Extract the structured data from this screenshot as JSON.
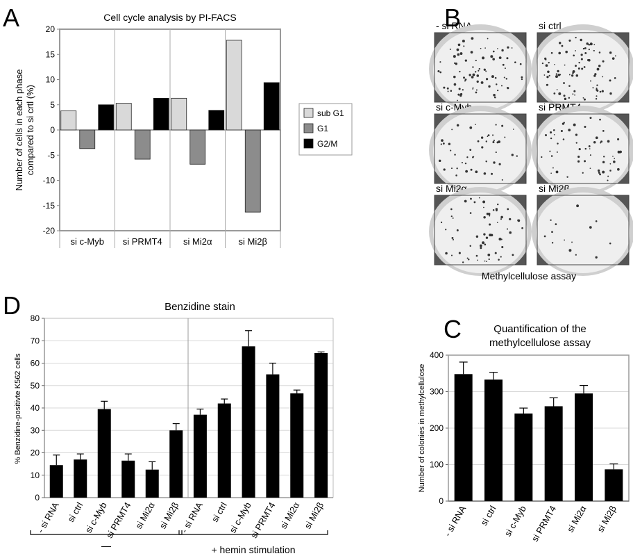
{
  "panels": {
    "A": {
      "letter": "A"
    },
    "B": {
      "letter": "B"
    },
    "C": {
      "letter": "C"
    },
    "D": {
      "letter": "D"
    }
  },
  "chart_data": [
    {
      "id": "A",
      "type": "bar",
      "title": "Cell cycle analysis by PI-FACS",
      "ylabel": "Number of cells in each phase compared to si crtl (%)",
      "ylabel_lines": [
        "Number of cells in each phase",
        "compared to si crtl (%)"
      ],
      "xlabel": "",
      "ylim": [
        -20,
        20
      ],
      "yticks": [
        -20,
        -15,
        -10,
        -5,
        0,
        5,
        10,
        15,
        20
      ],
      "categories": [
        "si c-Myb",
        "si PRMT4",
        "si Mi2α",
        "si Mi2β"
      ],
      "series": [
        {
          "name": "sub G1",
          "color": "#d9d9d9",
          "values": [
            3.8,
            5.3,
            6.3,
            17.8
          ]
        },
        {
          "name": "G1",
          "color": "#8c8c8c",
          "values": [
            -3.7,
            -5.8,
            -6.8,
            -16.3
          ]
        },
        {
          "name": "G2/M",
          "color": "#000000",
          "values": [
            5.0,
            6.3,
            3.9,
            9.4
          ]
        }
      ],
      "grid": false,
      "legend": "right"
    },
    {
      "id": "D",
      "type": "bar",
      "title": "Benzidine stain",
      "ylabel": "% Benzidine-positivte K562 cells",
      "xlabel": "",
      "ylim": [
        0,
        80
      ],
      "yticks": [
        0,
        10,
        20,
        30,
        40,
        50,
        60,
        70,
        80
      ],
      "groups": [
        {
          "label": "—",
          "categories": [
            "- si RNA",
            "si ctrl",
            "si c-Myb",
            "si PRMT4",
            "si Mi2α",
            "si Mi2β"
          ],
          "values": [
            14.5,
            17.0,
            39.5,
            16.5,
            12.5,
            30.0
          ],
          "errors": [
            4.5,
            2.5,
            3.5,
            3.0,
            3.5,
            3.0
          ]
        },
        {
          "label": "+ hemin stimulation",
          "categories": [
            "- si RNA",
            "si ctrl",
            "si c-Myb",
            "si PRMT4",
            "si Mi2α",
            "si Mi2β"
          ],
          "values": [
            37.0,
            42.0,
            67.5,
            55.0,
            46.5,
            64.5
          ],
          "errors": [
            2.5,
            2.0,
            7.0,
            5.0,
            1.5,
            0.5
          ]
        }
      ],
      "grid": true,
      "legend": "none"
    },
    {
      "id": "C",
      "type": "bar",
      "title": "Quantification of the methylcellulose assay",
      "title_lines": [
        "Quantification of the",
        "methylcellulose assay"
      ],
      "ylabel": "Number of colonies in methylcellulose",
      "xlabel": "",
      "ylim": [
        0,
        400
      ],
      "yticks": [
        0,
        100,
        200,
        300,
        400
      ],
      "categories": [
        "- si RNA",
        "si ctrl",
        "si c-Myb",
        "si PRMT4",
        "si Mi2α",
        "si Mi2β"
      ],
      "values": [
        348,
        333,
        240,
        260,
        295,
        87
      ],
      "errors": [
        33,
        20,
        15,
        23,
        22,
        15
      ],
      "grid": true,
      "legend": "none"
    }
  ],
  "assay": {
    "caption": "Methylcellulose assay",
    "plates": [
      {
        "label": "- si RNA",
        "density": 0.7
      },
      {
        "label": "si ctrl",
        "density": 0.75
      },
      {
        "label": "si c-Myb",
        "density": 0.45
      },
      {
        "label": "si PRMT4",
        "density": 0.5
      },
      {
        "label": "si Mi2α",
        "density": 0.55
      },
      {
        "label": "si Mi2β",
        "density": 0.12
      }
    ]
  }
}
